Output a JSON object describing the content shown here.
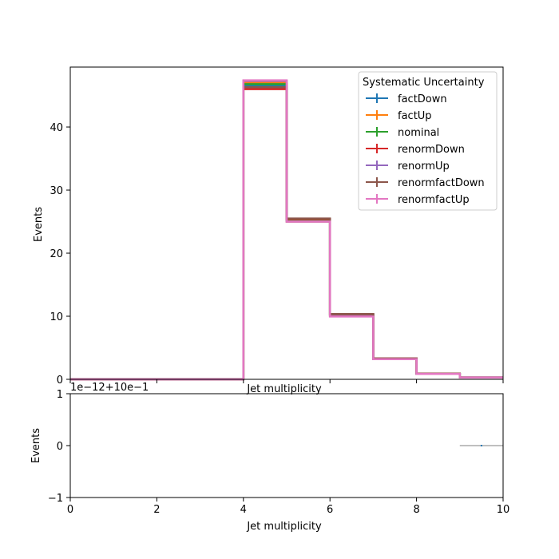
{
  "chart_data": [
    {
      "type": "line",
      "subtype": "step-histogram",
      "title": "",
      "xlabel": "Jet multiplicity",
      "ylabel": "Events",
      "xlim": [
        0,
        10
      ],
      "ylim": [
        0,
        49.5
      ],
      "xticks": [
        "0",
        "2",
        "4",
        "6",
        "8",
        "10"
      ],
      "yticks": [
        "0",
        "10",
        "20",
        "30",
        "40"
      ],
      "x_tick_values": [
        0,
        2,
        4,
        6,
        8,
        10
      ],
      "y_tick_values": [
        0,
        10,
        20,
        30,
        40
      ],
      "show_xtick_labels": false,
      "grid": false,
      "bin_edges": [
        0,
        1,
        2,
        3,
        4,
        5,
        6,
        7,
        8,
        9,
        10
      ],
      "legend": {
        "title": "Systematic Uncertainty",
        "placement": "top-right"
      },
      "series": [
        {
          "name": "factDown",
          "color": "#1f77b4",
          "values": [
            0,
            0,
            0,
            0,
            46.6,
            25.4,
            10.3,
            3.3,
            0.9,
            0.3
          ]
        },
        {
          "name": "factUp",
          "color": "#ff7f0e",
          "values": [
            0,
            0,
            0,
            0,
            47.0,
            25.0,
            10.0,
            3.2,
            0.85,
            0.28
          ]
        },
        {
          "name": "nominal",
          "color": "#2ca02c",
          "values": [
            0,
            0,
            0,
            0,
            46.8,
            25.2,
            10.15,
            3.25,
            0.87,
            0.29
          ]
        },
        {
          "name": "renormDown",
          "color": "#d62728",
          "values": [
            0,
            0,
            0,
            0,
            46.0,
            25.4,
            10.3,
            3.3,
            0.9,
            0.3
          ]
        },
        {
          "name": "renormUp",
          "color": "#9467bd",
          "values": [
            0,
            0,
            0,
            0,
            47.3,
            25.0,
            10.0,
            3.2,
            0.85,
            0.28
          ]
        },
        {
          "name": "renormfactDown",
          "color": "#8c564b",
          "values": [
            0,
            0,
            0,
            0,
            46.3,
            25.5,
            10.35,
            3.3,
            0.9,
            0.3
          ]
        },
        {
          "name": "renormfactUp",
          "color": "#e377c2",
          "values": [
            0,
            0,
            0,
            0,
            47.4,
            25.0,
            9.95,
            3.2,
            0.85,
            0.28
          ]
        }
      ]
    },
    {
      "type": "line",
      "subtype": "ratio",
      "title": "",
      "xlabel": "Jet multiplicity",
      "ylabel": "Events",
      "offset_text": "1e−12+10e−1",
      "xlim": [
        0,
        10
      ],
      "ylim": [
        -1,
        1
      ],
      "xticks": [
        "0",
        "2",
        "4",
        "6",
        "8",
        "10"
      ],
      "yticks": [
        "−1",
        "0",
        "1"
      ],
      "x_tick_values": [
        0,
        2,
        4,
        6,
        8,
        10
      ],
      "y_tick_values": [
        -1,
        0,
        1
      ],
      "grid": false,
      "points": [
        {
          "x_range": [
            9,
            10
          ],
          "y": 0,
          "color": "#aaaaaa",
          "marker_color": "#1f77b4"
        }
      ]
    }
  ]
}
